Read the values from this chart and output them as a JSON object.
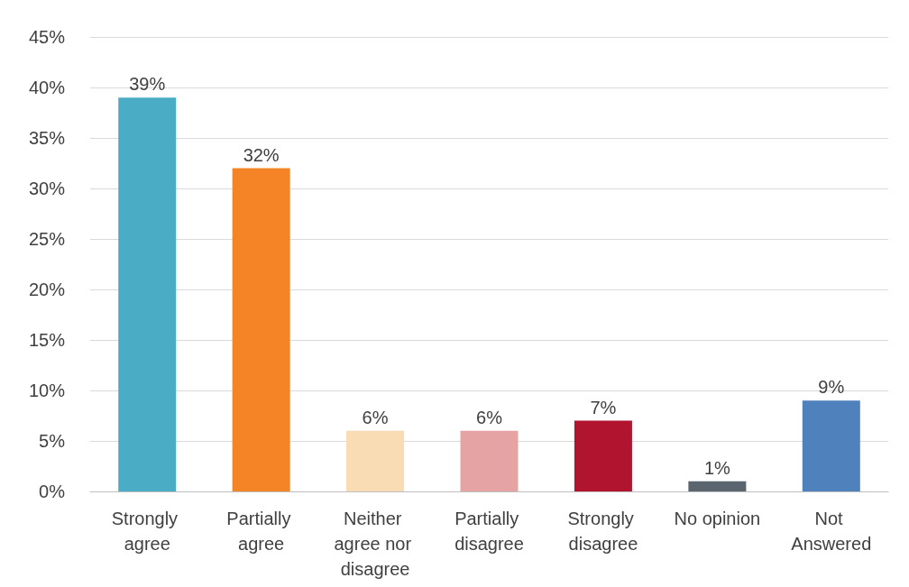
{
  "chart_data": {
    "type": "bar",
    "categories": [
      "Strongly agree",
      "Partially agree",
      "Neither agree nor disagree",
      "Partially disagree",
      "Strongly disagree",
      "No opinion",
      "Not Answered"
    ],
    "values": [
      39,
      32,
      6,
      6,
      7,
      1,
      9
    ],
    "value_labels": [
      "39%",
      "32%",
      "6%",
      "6%",
      "7%",
      "1%",
      "9%"
    ],
    "colors": [
      "#4bacc6",
      "#f58427",
      "#fadcb4",
      "#e6a3a3",
      "#b0142f",
      "#5a6570",
      "#4f81bd"
    ],
    "ylim": [
      0,
      45
    ],
    "yticks": [
      {
        "value": 0,
        "label": "0%"
      },
      {
        "value": 5,
        "label": "5%"
      },
      {
        "value": 10,
        "label": "10%"
      },
      {
        "value": 15,
        "label": "15%"
      },
      {
        "value": 20,
        "label": "20%"
      },
      {
        "value": 25,
        "label": "25%"
      },
      {
        "value": 30,
        "label": "30%"
      },
      {
        "value": 35,
        "label": "35%"
      },
      {
        "value": 40,
        "label": "40%"
      },
      {
        "value": 45,
        "label": "45%"
      }
    ],
    "grid": "y"
  }
}
